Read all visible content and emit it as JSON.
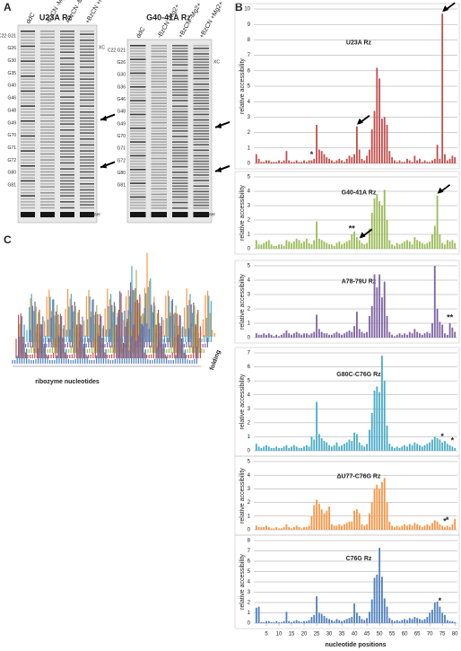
{
  "panel_labels": {
    "a": "A",
    "b": "B",
    "c": "C"
  },
  "panel_a": {
    "gels": [
      {
        "title": "U23A Rz",
        "lanes": [
          "ddC",
          "-BzCN -Mg2+",
          "+BzCN -Mg2+",
          "+BzCN +Mg2+"
        ],
        "bands_left": [
          "C22 G21",
          "G26",
          "G30",
          "G35",
          "G40",
          "G46",
          "G48",
          "G49",
          "G70",
          "G71",
          "G72",
          "G80",
          "G81"
        ],
        "xc": "XC",
        "primer": "RT primer"
      },
      {
        "title": "G40-41A Rz",
        "lanes": [
          "ddC",
          "-BzCN -Mg2+",
          "+BzCN -Mg2+",
          "+BzCN +Mg2+"
        ],
        "bands_left": [
          "C22 G21",
          "G26",
          "G30",
          "G36",
          "G46",
          "G48",
          "G49",
          "G70",
          "G71",
          "G72",
          "G80",
          "G81"
        ],
        "xc": "XC",
        "primer": "RT primer"
      }
    ]
  },
  "panel_c": {
    "x_label": "ribozyme nucleotides",
    "z_label": "folding"
  },
  "chart_data": [
    {
      "type": "bar",
      "title": "U23A Rz",
      "y_label": "relative accessibility",
      "color": "#c0504d",
      "xlim": [
        0,
        81
      ],
      "ylim": [
        0,
        10
      ],
      "yticks": [
        0,
        1,
        2,
        3,
        4,
        5,
        6,
        7,
        8,
        9,
        10
      ],
      "grid": true,
      "x": [
        1,
        2,
        3,
        4,
        5,
        6,
        7,
        8,
        9,
        10,
        11,
        12,
        13,
        14,
        15,
        16,
        17,
        18,
        19,
        20,
        21,
        22,
        23,
        24,
        25,
        26,
        27,
        28,
        29,
        30,
        31,
        32,
        33,
        34,
        35,
        36,
        37,
        38,
        39,
        40,
        41,
        42,
        43,
        44,
        45,
        46,
        47,
        48,
        49,
        50,
        51,
        52,
        53,
        54,
        55,
        56,
        57,
        58,
        59,
        60,
        61,
        62,
        63,
        64,
        65,
        66,
        67,
        68,
        69,
        70,
        71,
        72,
        73,
        74,
        75,
        76,
        77,
        78,
        79,
        80
      ],
      "values": [
        0.6,
        0.3,
        0.1,
        0.1,
        0.2,
        0.2,
        0.1,
        0.1,
        0.1,
        0.2,
        0.1,
        0.2,
        0.8,
        0.2,
        0.1,
        0.1,
        0.2,
        0.1,
        0.1,
        0.2,
        0.1,
        0.2,
        0.2,
        0.3,
        2.5,
        0.9,
        0.8,
        0.6,
        0.4,
        0.3,
        0.2,
        0.1,
        0.2,
        0.3,
        0.2,
        0.1,
        0.3,
        0.5,
        0.4,
        0.6,
        2.4,
        0.9,
        0.3,
        0.2,
        0.5,
        0.9,
        2.2,
        3.4,
        6.2,
        5.5,
        2.9,
        3.0,
        2.5,
        0.8,
        0.4,
        0.2,
        0.1,
        0.2,
        0.1,
        0.1,
        0.3,
        0.2,
        0.1,
        0.5,
        0.2,
        0.3,
        0.1,
        0.2,
        0.1,
        0.1,
        0.2,
        0.3,
        1.2,
        0.3,
        9.7,
        0.6,
        0.2,
        0.3,
        0.5,
        0.4
      ],
      "annotations": [
        {
          "text": "*",
          "x": 23
        }
      ],
      "arrows": [
        41,
        75
      ]
    },
    {
      "type": "bar",
      "title": "G40-41A Rz",
      "y_label": "relative accessibility",
      "color": "#9bbb59",
      "xlim": [
        0,
        81
      ],
      "ylim": [
        0,
        5
      ],
      "yticks": [
        0,
        1,
        2,
        3,
        4,
        5
      ],
      "grid": true,
      "x": [
        1,
        2,
        3,
        4,
        5,
        6,
        7,
        8,
        9,
        10,
        11,
        12,
        13,
        14,
        15,
        16,
        17,
        18,
        19,
        20,
        21,
        22,
        23,
        24,
        25,
        26,
        27,
        28,
        29,
        30,
        31,
        32,
        33,
        34,
        35,
        36,
        37,
        38,
        39,
        40,
        41,
        42,
        43,
        44,
        45,
        46,
        47,
        48,
        49,
        50,
        51,
        52,
        53,
        54,
        55,
        56,
        57,
        58,
        59,
        60,
        61,
        62,
        63,
        64,
        65,
        66,
        67,
        68,
        69,
        70,
        71,
        72,
        73,
        74,
        75,
        76,
        77,
        78,
        79,
        80
      ],
      "values": [
        0.6,
        0.3,
        0.3,
        0.4,
        0.5,
        0.6,
        0.3,
        0.2,
        0.2,
        0.3,
        0.3,
        0.2,
        0.6,
        0.5,
        0.4,
        0.5,
        0.7,
        0.6,
        0.4,
        0.5,
        0.7,
        0.4,
        0.3,
        0.6,
        1.9,
        0.7,
        0.6,
        0.5,
        0.4,
        0.3,
        0.3,
        0.2,
        0.4,
        0.5,
        0.3,
        0.4,
        0.5,
        0.6,
        1.0,
        1.2,
        0.8,
        0.6,
        0.4,
        0.3,
        0.4,
        1.4,
        2.5,
        3.5,
        3.8,
        3.3,
        3.0,
        4.1,
        2.0,
        0.6,
        0.3,
        0.2,
        0.4,
        0.3,
        0.4,
        0.5,
        0.6,
        0.5,
        0.3,
        0.8,
        0.6,
        0.5,
        0.4,
        0.3,
        0.4,
        0.5,
        1.0,
        1.6,
        3.7,
        1.0,
        0.4,
        0.3,
        0.6,
        0.5,
        0.6,
        0.4
      ],
      "annotations": [
        {
          "text": "**",
          "x": 39
        }
      ],
      "arrows": [
        42,
        73
      ]
    },
    {
      "type": "bar",
      "title": "A78-79U Rz",
      "y_label": "relative accessibility",
      "color": "#8064a2",
      "xlim": [
        0,
        81
      ],
      "ylim": [
        0,
        5
      ],
      "yticks": [
        0,
        1,
        2,
        3,
        4,
        5
      ],
      "grid": true,
      "x": [
        1,
        2,
        3,
        4,
        5,
        6,
        7,
        8,
        9,
        10,
        11,
        12,
        13,
        14,
        15,
        16,
        17,
        18,
        19,
        20,
        21,
        22,
        23,
        24,
        25,
        26,
        27,
        28,
        29,
        30,
        31,
        32,
        33,
        34,
        35,
        36,
        37,
        38,
        39,
        40,
        41,
        42,
        43,
        44,
        45,
        46,
        47,
        48,
        49,
        50,
        51,
        52,
        53,
        54,
        55,
        56,
        57,
        58,
        59,
        60,
        61,
        62,
        63,
        64,
        65,
        66,
        67,
        68,
        69,
        70,
        71,
        72,
        73,
        74,
        75,
        76,
        77,
        78,
        79,
        80
      ],
      "values": [
        0.3,
        0.2,
        0.2,
        0.3,
        0.2,
        0.3,
        0.2,
        0.1,
        0.2,
        0.1,
        0.2,
        0.3,
        0.5,
        0.3,
        0.2,
        0.3,
        0.4,
        0.3,
        0.2,
        0.3,
        0.3,
        0.2,
        0.3,
        0.4,
        1.6,
        0.6,
        0.4,
        0.3,
        0.3,
        0.2,
        0.2,
        0.3,
        0.4,
        0.3,
        0.2,
        0.3,
        0.4,
        0.5,
        0.4,
        0.8,
        1.8,
        0.6,
        0.4,
        0.3,
        0.4,
        1.5,
        2.2,
        4.4,
        3.5,
        4.4,
        2.8,
        3.9,
        1.5,
        0.4,
        0.2,
        0.1,
        0.2,
        0.3,
        0.2,
        0.3,
        0.2,
        0.4,
        0.3,
        0.6,
        0.4,
        0.3,
        0.2,
        0.3,
        0.4,
        0.3,
        1.0,
        5.0,
        2.0,
        1.1,
        0.9,
        0.3,
        0.2,
        1.0,
        0.7,
        0.4
      ],
      "annotations": [
        {
          "text": "**",
          "x": 78
        }
      ],
      "arrows": []
    },
    {
      "type": "bar",
      "title": "G80C-C76G Rz",
      "y_label": "relative accessibility",
      "color": "#4bacc6",
      "xlim": [
        0,
        81
      ],
      "ylim": [
        0,
        7
      ],
      "yticks": [
        0,
        1,
        2,
        3,
        4,
        5,
        6,
        7
      ],
      "grid": true,
      "x": [
        1,
        2,
        3,
        4,
        5,
        6,
        7,
        8,
        9,
        10,
        11,
        12,
        13,
        14,
        15,
        16,
        17,
        18,
        19,
        20,
        21,
        22,
        23,
        24,
        25,
        26,
        27,
        28,
        29,
        30,
        31,
        32,
        33,
        34,
        35,
        36,
        37,
        38,
        39,
        40,
        41,
        42,
        43,
        44,
        45,
        46,
        47,
        48,
        49,
        50,
        51,
        52,
        53,
        54,
        55,
        56,
        57,
        58,
        59,
        60,
        61,
        62,
        63,
        64,
        65,
        66,
        67,
        68,
        69,
        70,
        71,
        72,
        73,
        74,
        75,
        76,
        77,
        78,
        79,
        80
      ],
      "values": [
        0.5,
        0.3,
        0.2,
        0.3,
        0.4,
        0.3,
        0.2,
        0.2,
        0.3,
        0.2,
        0.2,
        0.3,
        0.4,
        0.2,
        0.3,
        0.4,
        0.3,
        0.2,
        0.2,
        0.3,
        0.4,
        0.3,
        1.0,
        0.8,
        3.5,
        1.2,
        0.9,
        0.7,
        0.6,
        0.4,
        0.3,
        0.4,
        0.6,
        0.3,
        0.4,
        0.5,
        0.6,
        0.8,
        0.7,
        1.3,
        1.2,
        0.6,
        0.4,
        0.3,
        0.5,
        1.5,
        2.7,
        4.3,
        4.6,
        4.2,
        6.8,
        5.0,
        1.8,
        0.5,
        0.3,
        0.2,
        0.3,
        0.2,
        0.3,
        0.4,
        0.3,
        0.5,
        0.4,
        0.6,
        0.5,
        0.4,
        0.3,
        0.4,
        0.5,
        0.6,
        0.8,
        1.0,
        0.9,
        0.8,
        0.6,
        0.7,
        0.5,
        0.4,
        0.3,
        0.2
      ],
      "annotations": [
        {
          "text": "*",
          "x": 75
        },
        {
          "text": "*",
          "x": 79
        }
      ],
      "arrows": []
    },
    {
      "type": "bar",
      "title": "ΔU77-C76G Rz",
      "y_label": "relative accessibility",
      "color": "#f79646",
      "xlim": [
        0,
        81
      ],
      "ylim": [
        0,
        5
      ],
      "yticks": [
        0,
        1,
        2,
        3,
        4,
        5
      ],
      "grid": true,
      "x": [
        1,
        2,
        3,
        4,
        5,
        6,
        7,
        8,
        9,
        10,
        11,
        12,
        13,
        14,
        15,
        16,
        17,
        18,
        19,
        20,
        21,
        22,
        23,
        24,
        25,
        26,
        27,
        28,
        29,
        30,
        31,
        32,
        33,
        34,
        35,
        36,
        37,
        38,
        39,
        40,
        41,
        42,
        43,
        44,
        45,
        46,
        47,
        48,
        49,
        50,
        51,
        52,
        53,
        54,
        55,
        56,
        57,
        58,
        59,
        60,
        61,
        62,
        63,
        64,
        65,
        66,
        67,
        68,
        69,
        70,
        71,
        72,
        73,
        74,
        75,
        76,
        77,
        78,
        79,
        80
      ],
      "values": [
        0.3,
        0.2,
        0.2,
        0.2,
        0.3,
        0.2,
        0.1,
        0.1,
        0.2,
        0.1,
        0.1,
        0.2,
        0.4,
        0.2,
        0.1,
        0.2,
        0.3,
        0.2,
        0.1,
        0.2,
        0.2,
        0.3,
        1.0,
        1.8,
        2.2,
        1.9,
        1.5,
        1.2,
        1.4,
        1.7,
        0.4,
        0.3,
        0.3,
        0.4,
        0.3,
        0.4,
        0.5,
        0.6,
        0.6,
        1.4,
        1.5,
        1.2,
        0.4,
        0.3,
        0.4,
        1.2,
        2.0,
        3.0,
        3.3,
        3.0,
        3.5,
        3.8,
        2.0,
        0.6,
        0.3,
        0.2,
        0.3,
        0.2,
        0.3,
        0.4,
        0.3,
        0.4,
        0.3,
        0.5,
        0.4,
        0.3,
        0.2,
        0.3,
        0.4,
        0.3,
        0.5,
        0.7,
        0.6,
        0.4,
        0.3,
        0.2,
        0.3,
        0.2,
        0.4,
        0.8
      ],
      "annotations": [
        {
          "text": "*",
          "x": 76
        },
        {
          "text": "*",
          "x": 77
        }
      ],
      "arrows": []
    },
    {
      "type": "bar",
      "title": "C76G Rz",
      "y_label": "relative accessibility",
      "x_label": "nucleotide positions",
      "color": "#4f81bd",
      "xlim": [
        0,
        81
      ],
      "xticks": [
        5,
        10,
        15,
        20,
        25,
        30,
        35,
        40,
        45,
        50,
        55,
        60,
        65,
        70,
        75,
        80
      ],
      "ylim": [
        0,
        8
      ],
      "yticks": [
        0,
        1,
        2,
        3,
        4,
        5,
        6,
        7,
        8
      ],
      "grid": true,
      "x": [
        1,
        2,
        3,
        4,
        5,
        6,
        7,
        8,
        9,
        10,
        11,
        12,
        13,
        14,
        15,
        16,
        17,
        18,
        19,
        20,
        21,
        22,
        23,
        24,
        25,
        26,
        27,
        28,
        29,
        30,
        31,
        32,
        33,
        34,
        35,
        36,
        37,
        38,
        39,
        40,
        41,
        42,
        43,
        44,
        45,
        46,
        47,
        48,
        49,
        50,
        51,
        52,
        53,
        54,
        55,
        56,
        57,
        58,
        59,
        60,
        61,
        62,
        63,
        64,
        65,
        66,
        67,
        68,
        69,
        70,
        71,
        72,
        73,
        74,
        75,
        76,
        77,
        78,
        79,
        80
      ],
      "values": [
        1.5,
        1.6,
        0.1,
        0.1,
        0.2,
        0.2,
        0.1,
        0.1,
        0.2,
        0.1,
        0.1,
        0.2,
        1.1,
        0.2,
        0.1,
        0.2,
        0.3,
        0.2,
        0.1,
        0.2,
        0.2,
        0.3,
        0.6,
        0.8,
        2.6,
        1.0,
        0.9,
        0.7,
        0.5,
        0.4,
        0.3,
        0.2,
        0.4,
        0.3,
        0.2,
        0.3,
        0.4,
        0.5,
        0.6,
        1.9,
        1.0,
        0.7,
        0.4,
        0.3,
        0.5,
        1.1,
        2.3,
        4.4,
        4.7,
        7.3,
        4.5,
        2.4,
        1.6,
        0.5,
        0.3,
        0.2,
        0.3,
        0.2,
        0.3,
        0.4,
        0.3,
        0.5,
        0.4,
        0.6,
        0.5,
        0.4,
        0.3,
        0.4,
        0.6,
        1.0,
        1.3,
        2.0,
        2.1,
        1.6,
        1.0,
        0.8,
        0.3,
        0.2,
        0.2,
        0.1
      ],
      "annotations": [
        {
          "text": "*",
          "x": 74
        }
      ],
      "arrows": []
    }
  ]
}
